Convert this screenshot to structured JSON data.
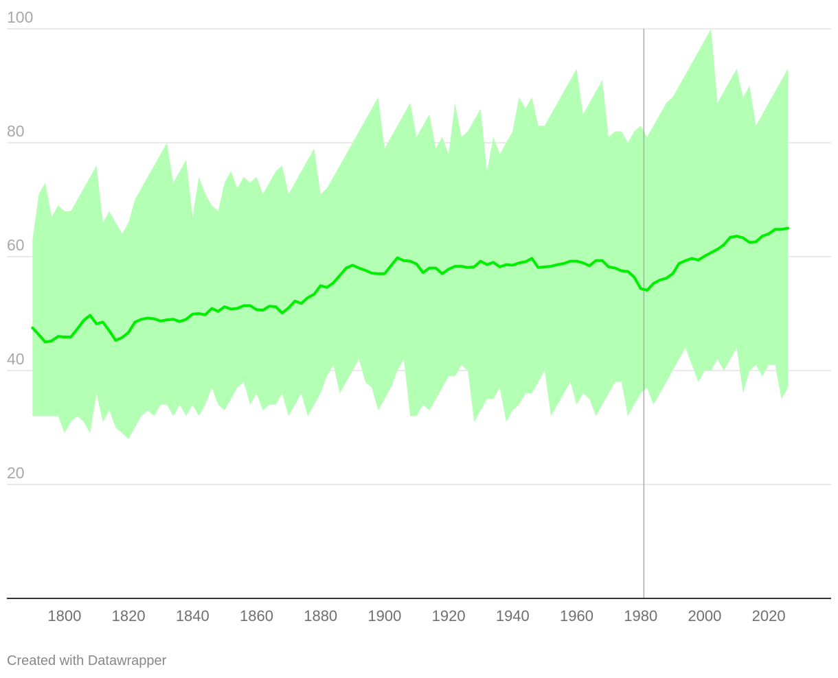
{
  "footer": {
    "credit": "Created with Datawrapper"
  },
  "colors": {
    "band": "#b3ffb3",
    "line": "#00ee00",
    "grid": "#dddddd",
    "axis": "#333333",
    "marker": "#aaaaaa"
  },
  "chart_data": {
    "type": "area",
    "title": "",
    "xlabel": "",
    "ylabel": "",
    "xlim": [
      1782,
      2039.5
    ],
    "ylim": [
      0,
      100
    ],
    "grid": true,
    "yticks": [
      20,
      40,
      60,
      80,
      100
    ],
    "xticks": [
      1800,
      1820,
      1840,
      1860,
      1880,
      1900,
      1920,
      1940,
      1960,
      1980,
      2000,
      2020
    ],
    "vertical_marker": 1981,
    "x": [
      1790,
      1792,
      1794,
      1796,
      1798,
      1800,
      1802,
      1804,
      1806,
      1808,
      1810,
      1812,
      1814,
      1816,
      1818,
      1820,
      1822,
      1824,
      1826,
      1828,
      1830,
      1832,
      1834,
      1836,
      1838,
      1840,
      1842,
      1844,
      1846,
      1848,
      1850,
      1852,
      1854,
      1856,
      1858,
      1860,
      1862,
      1864,
      1866,
      1868,
      1870,
      1872,
      1874,
      1876,
      1878,
      1880,
      1882,
      1884,
      1886,
      1888,
      1890,
      1892,
      1894,
      1896,
      1898,
      1900,
      1902,
      1904,
      1906,
      1908,
      1910,
      1912,
      1914,
      1916,
      1918,
      1920,
      1922,
      1924,
      1926,
      1928,
      1930,
      1932,
      1934,
      1936,
      1938,
      1940,
      1942,
      1944,
      1946,
      1948,
      1950,
      1952,
      1954,
      1956,
      1958,
      1960,
      1962,
      1964,
      1966,
      1968,
      1970,
      1972,
      1974,
      1976,
      1978,
      1980,
      1982,
      1984,
      1986,
      1988,
      1990,
      1992,
      1994,
      1996,
      1998,
      2000,
      2002,
      2004,
      2006,
      2008,
      2010,
      2012,
      2014,
      2016,
      2018,
      2020,
      2022,
      2024,
      2026
    ],
    "series": [
      {
        "values": [
          47.5,
          46.3,
          45.0,
          45.2,
          46.0,
          45.9,
          45.9,
          47.3,
          48.8,
          49.7,
          48.2,
          48.5,
          47.0,
          45.3,
          45.8,
          46.7,
          48.5,
          49.0,
          49.2,
          49.1,
          48.7,
          48.9,
          49.0,
          48.6,
          49.0,
          49.9,
          50.0,
          49.8,
          50.9,
          50.4,
          51.2,
          50.8,
          50.9,
          51.4,
          51.4,
          50.7,
          50.6,
          51.3,
          51.2,
          50.1,
          51.0,
          52.2,
          51.8,
          52.8,
          53.4,
          54.9,
          54.6,
          55.4,
          56.7,
          58.0,
          58.5,
          58.0,
          57.6,
          57.1,
          57.0,
          57.0,
          58.4,
          59.8,
          59.3,
          59.2,
          58.7,
          57.2,
          58.0,
          58.0,
          57.0,
          57.8,
          58.3,
          58.3,
          58.1,
          58.2,
          59.2,
          58.6,
          59.0,
          58.2,
          58.6,
          58.5,
          58.9,
          59.1,
          59.7,
          58.1,
          58.2,
          58.3,
          58.6,
          58.8,
          59.2,
          59.2,
          58.9,
          58.4,
          59.3,
          59.3,
          58.2,
          58.0,
          57.5,
          57.4,
          56.4,
          54.4,
          54.1,
          55.3,
          55.9,
          56.2,
          57.0,
          58.8,
          59.3,
          59.7,
          59.4,
          60.1,
          60.7,
          61.3,
          62.1,
          63.4,
          63.6,
          63.3,
          62.5,
          62.6,
          63.6,
          64.0,
          64.8,
          64.8,
          65.0
        ]
      }
    ],
    "band": {
      "upper": [
        63,
        71,
        73,
        67,
        69,
        68,
        68,
        70,
        72,
        74,
        76,
        66,
        68,
        66,
        64,
        66,
        70,
        72,
        74,
        76,
        78,
        80,
        73,
        75,
        77,
        67,
        74,
        71,
        69,
        68,
        73,
        75,
        72,
        74,
        73,
        74,
        71,
        73,
        75,
        76,
        71,
        73,
        75,
        77,
        79,
        71,
        72,
        74,
        76,
        78,
        80,
        82,
        84,
        86,
        88,
        79,
        81,
        83,
        85,
        87,
        81,
        83,
        85,
        79,
        81,
        78,
        87,
        81,
        82,
        84,
        86,
        75,
        81,
        78,
        80,
        82,
        88,
        86,
        88,
        83,
        83,
        85,
        87,
        89,
        91,
        93,
        85,
        87,
        89,
        91,
        81,
        82,
        82,
        80,
        82,
        83,
        81,
        83,
        85,
        87,
        88,
        90,
        92,
        94,
        96,
        98,
        100,
        87,
        89,
        91,
        93,
        88,
        90,
        83,
        85,
        87,
        89,
        91,
        93
      ],
      "lower": [
        32,
        32,
        32,
        32,
        32,
        29,
        31,
        32,
        31,
        29,
        36,
        31,
        33,
        30,
        29,
        28,
        30,
        32,
        33,
        32,
        34,
        34,
        32,
        34,
        32,
        34,
        32,
        34,
        37,
        34,
        33,
        35,
        37,
        38,
        34,
        36,
        33,
        34,
        34,
        36,
        32,
        34,
        36,
        32,
        34,
        36,
        39,
        41,
        36,
        38,
        40,
        42,
        38,
        37,
        33,
        35,
        37,
        40,
        42,
        32,
        32,
        34,
        33,
        35,
        37,
        39,
        39,
        41,
        40,
        31,
        33,
        35,
        35,
        37,
        31,
        33,
        34,
        36,
        36,
        38,
        40,
        32,
        34,
        36,
        38,
        34,
        36,
        35,
        32,
        34,
        36,
        38,
        38,
        32,
        34,
        36,
        37,
        34,
        36,
        38,
        40,
        42,
        44,
        41,
        38,
        40,
        40,
        42,
        40,
        42,
        44,
        36,
        40,
        41,
        39,
        41,
        41,
        35,
        37
      ]
    }
  }
}
